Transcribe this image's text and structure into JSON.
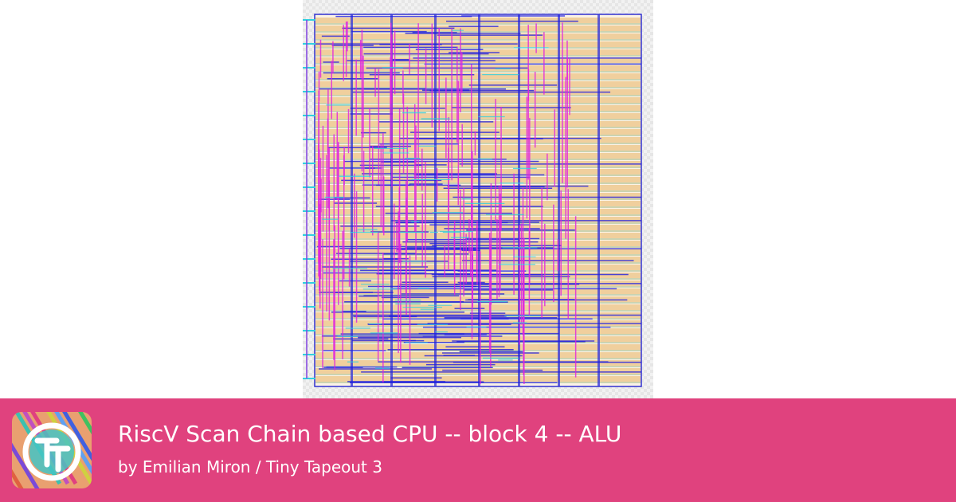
{
  "title": "RiscV Scan Chain based CPU -- block 4 -- ALU",
  "subtitle": "by Emilian Miron / Tiny Tapeout 3"
}
